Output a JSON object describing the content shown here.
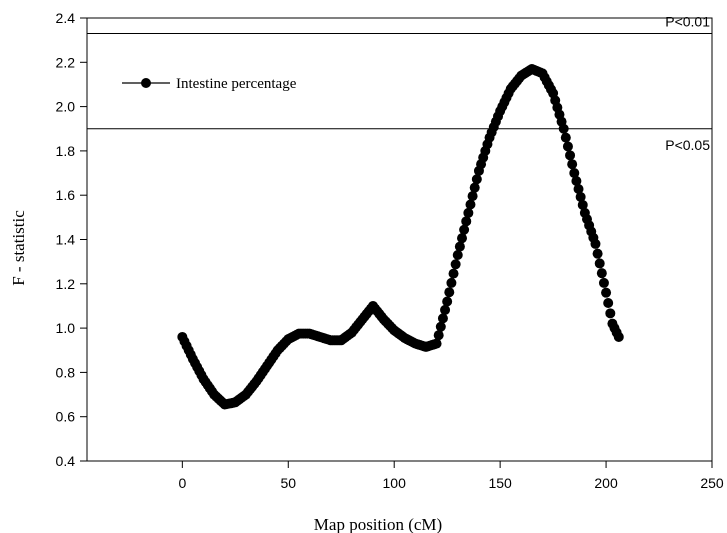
{
  "chart_data": {
    "type": "scatter",
    "xlabel": "Map position (cM)",
    "ylabel": "F - statistic",
    "xlim": [
      -45,
      250
    ],
    "ylim": [
      0.4,
      2.4
    ],
    "xticks": [
      0,
      50,
      100,
      150,
      200,
      250
    ],
    "yticks": [
      0.4,
      0.6,
      0.8,
      1.0,
      1.2,
      1.4,
      1.6,
      1.8,
      2.0,
      2.2,
      2.4
    ],
    "ytick_labels": [
      "0.4",
      "0.6",
      "0.8",
      "1.0",
      "1.2",
      "1.4",
      "1.6",
      "1.8",
      "2.0",
      "2.2",
      "2.4"
    ],
    "grid": false,
    "legend_position": "top-left",
    "series": [
      {
        "name": "Intestine percentage",
        "color": "#000000",
        "marker": "filled-circle",
        "x_range": [
          0,
          206
        ],
        "x_step": 1,
        "profile_points": [
          [
            0,
            0.96
          ],
          [
            5,
            0.86
          ],
          [
            10,
            0.77
          ],
          [
            15,
            0.7
          ],
          [
            20,
            0.655
          ],
          [
            25,
            0.665
          ],
          [
            30,
            0.7
          ],
          [
            35,
            0.76
          ],
          [
            40,
            0.83
          ],
          [
            45,
            0.9
          ],
          [
            50,
            0.95
          ],
          [
            55,
            0.975
          ],
          [
            60,
            0.975
          ],
          [
            65,
            0.96
          ],
          [
            70,
            0.945
          ],
          [
            75,
            0.945
          ],
          [
            80,
            0.98
          ],
          [
            85,
            1.04
          ],
          [
            90,
            1.1
          ],
          [
            95,
            1.04
          ],
          [
            100,
            0.99
          ],
          [
            105,
            0.955
          ],
          [
            110,
            0.93
          ],
          [
            115,
            0.915
          ],
          [
            120,
            0.93
          ],
          [
            125,
            1.12
          ],
          [
            130,
            1.33
          ],
          [
            135,
            1.52
          ],
          [
            140,
            1.71
          ],
          [
            145,
            1.86
          ],
          [
            150,
            1.98
          ],
          [
            155,
            2.08
          ],
          [
            160,
            2.14
          ],
          [
            165,
            2.17
          ],
          [
            170,
            2.15
          ],
          [
            175,
            2.06
          ],
          [
            180,
            1.9
          ],
          [
            185,
            1.7
          ],
          [
            190,
            1.52
          ],
          [
            195,
            1.38
          ],
          [
            200,
            1.16
          ],
          [
            203,
            1.02
          ],
          [
            206,
            0.96
          ]
        ]
      }
    ],
    "thresholds": [
      {
        "label": "P<0.01",
        "value": 2.33
      },
      {
        "label": "P<0.05",
        "value": 1.9
      }
    ]
  }
}
